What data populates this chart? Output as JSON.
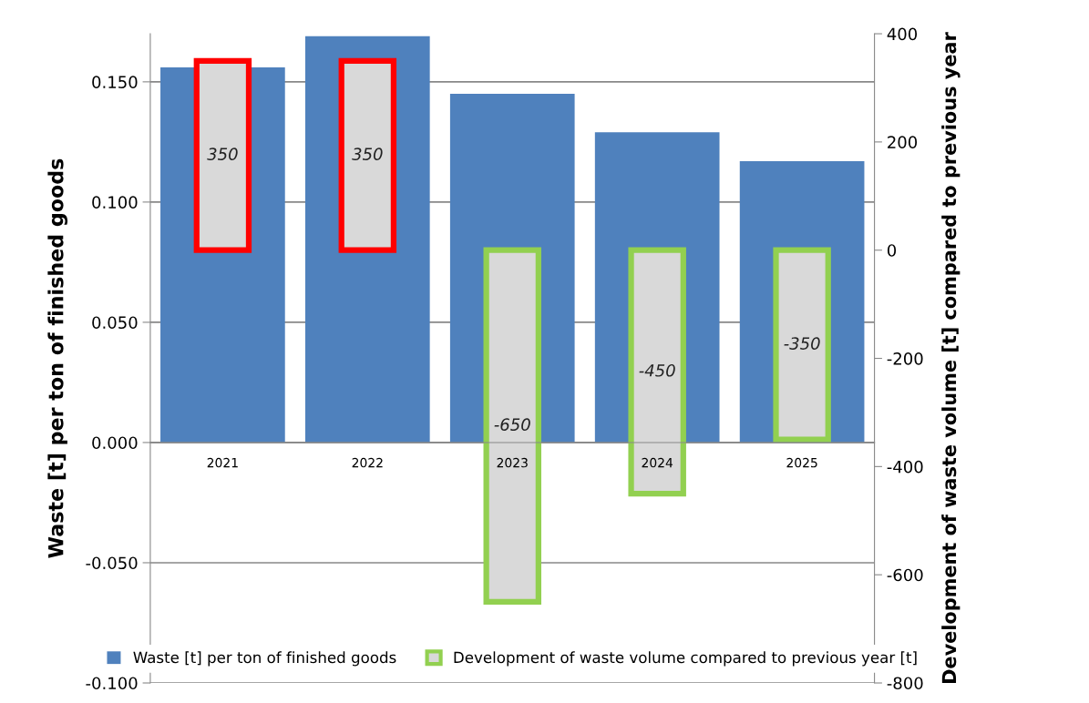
{
  "chart_data": {
    "type": "bar",
    "categories": [
      "2021",
      "2022",
      "2023",
      "2024",
      "2025"
    ],
    "series": [
      {
        "name": "Waste [t] per ton of finished goods",
        "color": "#4f81bd",
        "values": [
          0.156,
          0.169,
          0.145,
          0.129,
          0.117
        ]
      },
      {
        "name": "Development of waste volume compared to previous year [t]",
        "axis": "y2",
        "colors": [
          "#ff0000",
          "#ff0000",
          "#92d050",
          "#92d050",
          "#92d050"
        ],
        "values": [
          350,
          350,
          -650,
          -450,
          -350
        ],
        "data_labels": true
      }
    ],
    "ylabel": "Waste [t] per ton of finished goods",
    "y2label": "Development of waste volume [t] compared to previous year",
    "ylim": [
      -0.1,
      0.17
    ],
    "yticks": [
      {
        "value": -0.1,
        "label": "-0.100"
      },
      {
        "value": -0.05,
        "label": "-0.050"
      },
      {
        "value": 0,
        "label": "0.000"
      },
      {
        "value": 0.05,
        "label": "0.050"
      },
      {
        "value": 0.1,
        "label": "0.100"
      },
      {
        "value": 0.15,
        "label": "0.150"
      }
    ],
    "y2lim": [
      -800,
      400
    ],
    "y2ticks": [
      -800,
      -600,
      -400,
      -200,
      0,
      200,
      400
    ],
    "grid": "y",
    "legend": "bottom"
  }
}
